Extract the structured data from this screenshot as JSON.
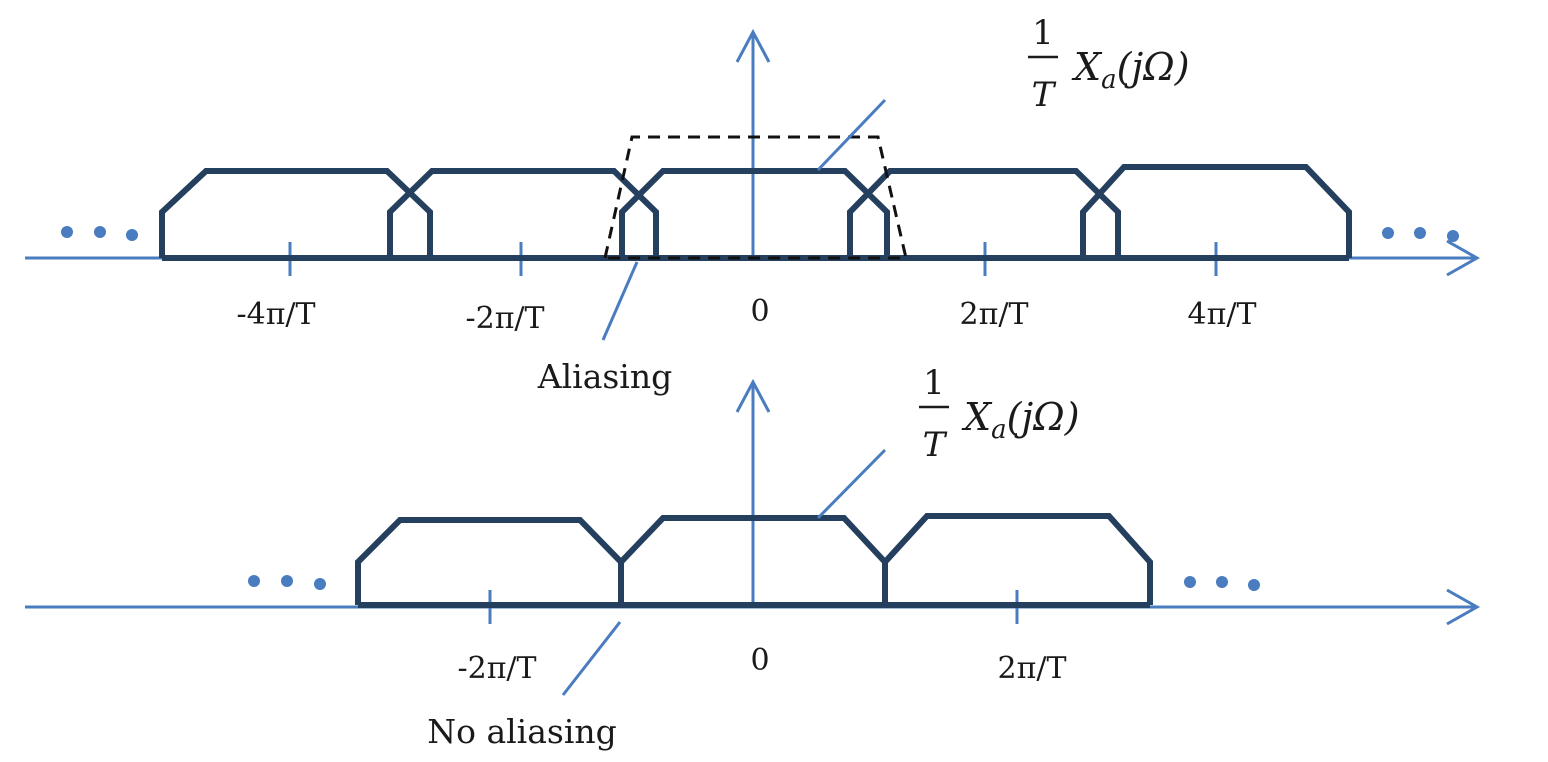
{
  "top_panel": {
    "tick_labels": [
      "-4π/T",
      "-2π/T",
      "0",
      "2π/T",
      "4π/T"
    ],
    "callout": "Aliasing",
    "spectrum_label": {
      "numerator": "1",
      "denominator": "T",
      "expression": "X",
      "subscript": "a",
      "argument": "(jΩ)"
    }
  },
  "bottom_panel": {
    "tick_labels": [
      "-2π/T",
      "0",
      "2π/T"
    ],
    "callout": "No aliasing",
    "spectrum_label": {
      "numerator": "1",
      "denominator": "T",
      "expression": "X",
      "subscript": "a",
      "argument": "(jΩ)"
    }
  },
  "continuation": "…",
  "colors": {
    "axis": "#4a7cc0",
    "spectrum": "#25405f",
    "original": "#111111"
  }
}
